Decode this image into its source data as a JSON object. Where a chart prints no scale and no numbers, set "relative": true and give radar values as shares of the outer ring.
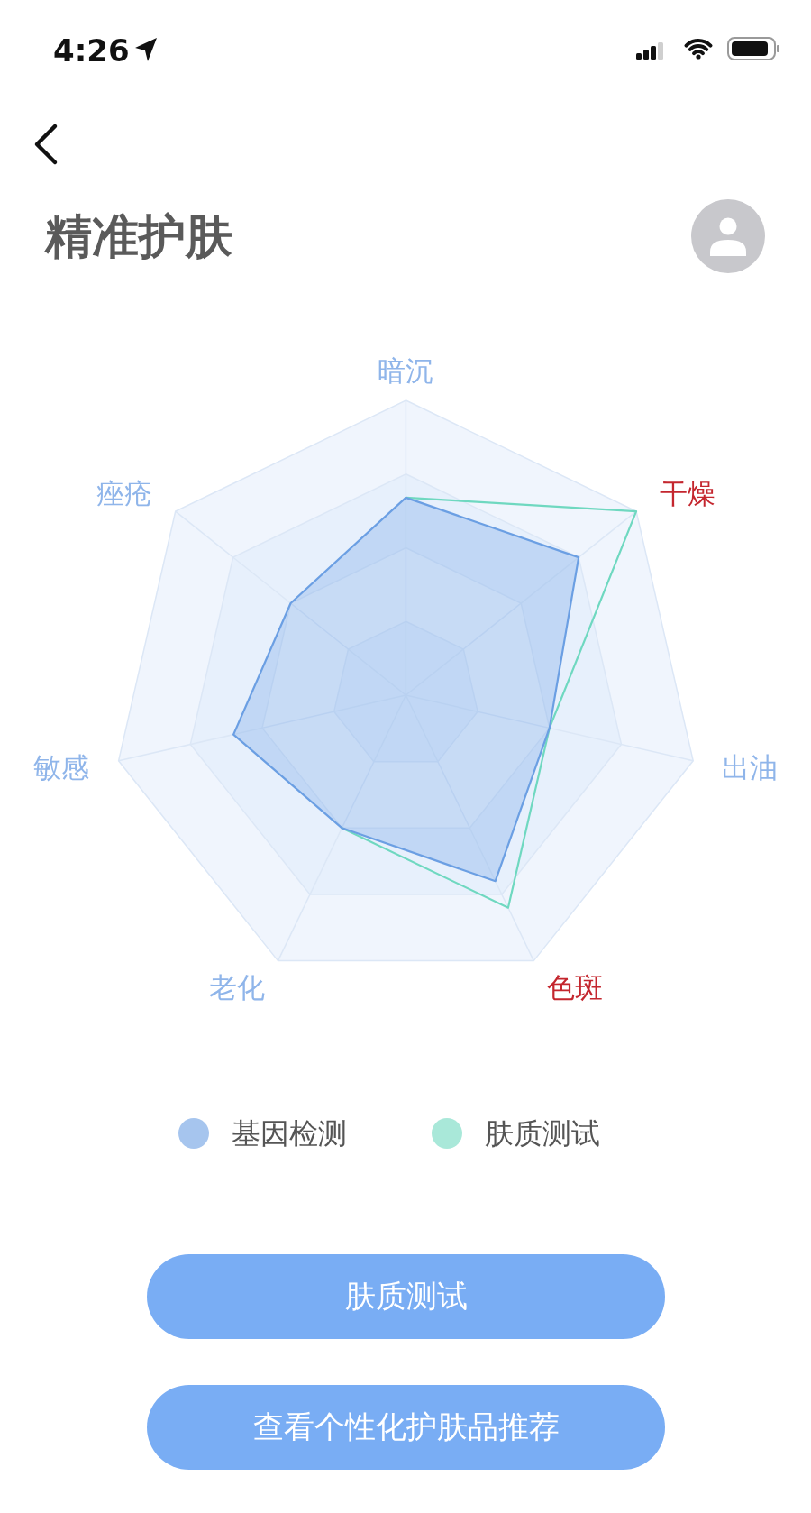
{
  "chart_data": {
    "type": "radar",
    "title": "精准护肤",
    "categories": [
      "暗沉",
      "干燥",
      "出油",
      "色斑",
      "老化",
      "敏感",
      "痤疮"
    ],
    "colors": [
      "#8fb5ea",
      "#c4262e",
      "#8fb5ea",
      "#c4262e",
      "#8fb5ea",
      "#8fb5ea",
      "#8fb5ea"
    ],
    "relative": true,
    "series": [
      {
        "name": "基因检测",
        "color": "#6b9fe3",
        "values": [
          0.67,
          0.75,
          0.5,
          0.7,
          0.5,
          0.6,
          0.5
        ]
      },
      {
        "name": "肤质测试",
        "color": "#6fd8c0",
        "values": [
          0.67,
          1,
          0.5,
          0.8,
          0.5,
          null,
          null
        ]
      }
    ],
    "legend": "bottom",
    "grid": true,
    "annotations": [
      "4:26",
      "肤质测试",
      "查看个性化护肤品推荐"
    ]
  }
}
